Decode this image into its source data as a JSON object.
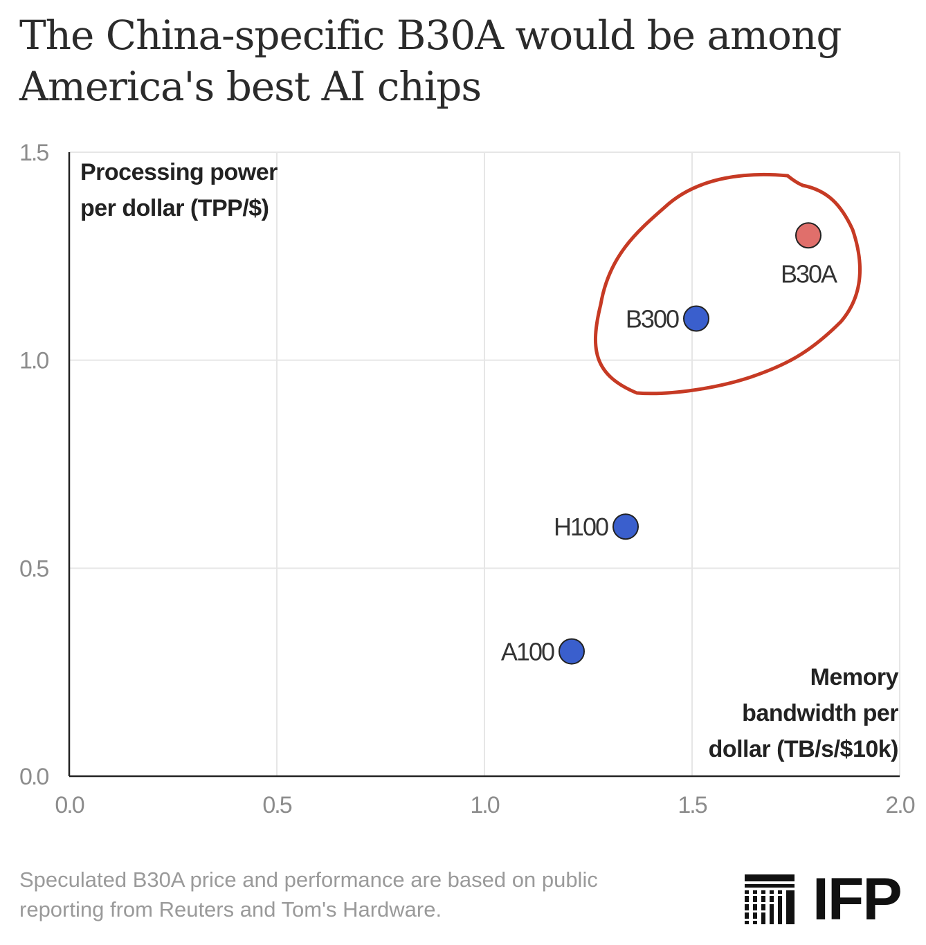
{
  "header": {
    "title_line1": "The China-specific B30A would be among",
    "title_line2": "America's best AI chips"
  },
  "chart_data": {
    "type": "scatter",
    "title": "The China-specific B30A would be among America's best AI chips",
    "xlabel_lines": [
      "Memory",
      "bandwidth per",
      "dollar (TB/s/$10k)"
    ],
    "ylabel_lines": [
      "Processing power",
      "per dollar (TPP/$)"
    ],
    "xlim": [
      0,
      2.0
    ],
    "ylim": [
      0,
      1.5
    ],
    "xticks": [
      "0.0",
      "0.5",
      "1.0",
      "1.5",
      "2.0"
    ],
    "yticks": [
      "0.0",
      "0.5",
      "1.0",
      "1.5"
    ],
    "grid": true,
    "points": [
      {
        "label": "A100",
        "x": 1.21,
        "y": 0.3,
        "color": "#3a5fcd"
      },
      {
        "label": "H100",
        "x": 1.34,
        "y": 0.6,
        "color": "#3a5fcd"
      },
      {
        "label": "B300",
        "x": 1.51,
        "y": 1.1,
        "color": "#3a5fcd"
      },
      {
        "label": "B30A",
        "x": 1.78,
        "y": 1.3,
        "color": "#e06f6b"
      }
    ],
    "annotation": {
      "type": "hand-drawn circle",
      "encloses": [
        "B300",
        "B30A"
      ],
      "color": "#c63a24"
    }
  },
  "footnote": {
    "line1": "Speculated B30A price and performance are based on public",
    "line2": "reporting from Reuters and Tom's Hardware."
  },
  "logo": {
    "text": "IFP",
    "icon": "ifp-stripes-icon"
  }
}
